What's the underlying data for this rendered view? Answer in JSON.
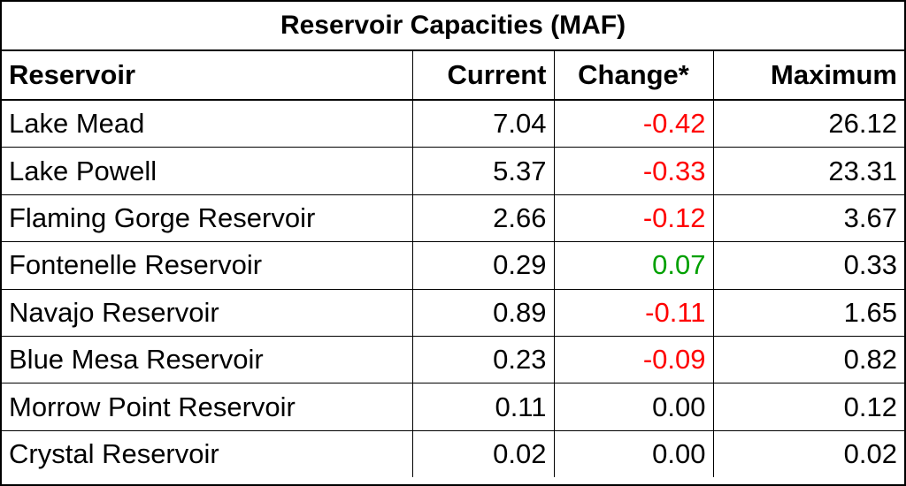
{
  "chart_data": {
    "type": "table",
    "title": "Reservoir Capacities (MAF)",
    "columns": [
      "Reservoir",
      "Current",
      "Change*",
      "Maximum"
    ],
    "rows": [
      {
        "reservoir": "Lake Mead",
        "current": "7.04",
        "change": "-0.42",
        "maximum": "26.12"
      },
      {
        "reservoir": "Lake Powell",
        "current": "5.37",
        "change": "-0.33",
        "maximum": "23.31"
      },
      {
        "reservoir": "Flaming Gorge Reservoir",
        "current": "2.66",
        "change": "-0.12",
        "maximum": "3.67"
      },
      {
        "reservoir": "Fontenelle Reservoir",
        "current": "0.29",
        "change": "0.07",
        "maximum": "0.33"
      },
      {
        "reservoir": "Navajo Reservoir",
        "current": "0.89",
        "change": "-0.11",
        "maximum": "1.65"
      },
      {
        "reservoir": "Blue Mesa Reservoir",
        "current": "0.23",
        "change": "-0.09",
        "maximum": "0.82"
      },
      {
        "reservoir": "Morrow Point Reservoir",
        "current": "0.11",
        "change": "0.00",
        "maximum": "0.12"
      },
      {
        "reservoir": "Crystal Reservoir",
        "current": "0.02",
        "change": "0.00",
        "maximum": "0.02"
      }
    ]
  },
  "colors": {
    "negative": "#ff0000",
    "positive": "#00a000",
    "neutral": "#000000",
    "border": "#000000"
  }
}
